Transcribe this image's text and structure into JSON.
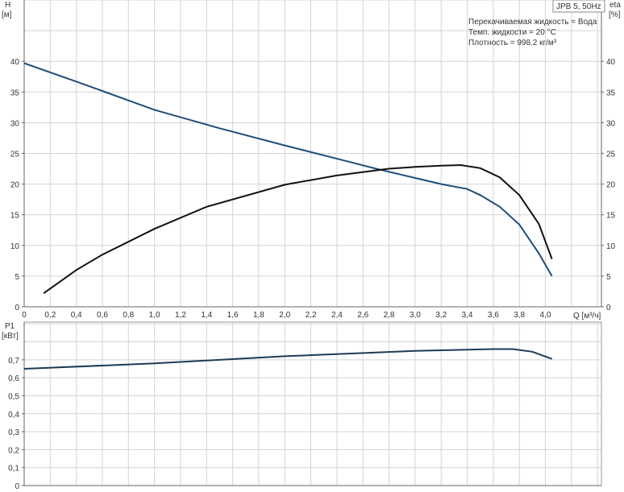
{
  "chart_data": [
    {
      "type": "line",
      "title_box": "JPB 5, 50Hz",
      "info": [
        "Перекачиваемая жидкость = Вода",
        "Темп. жидкости = 20 °C",
        "Плотность = 998.2 кг/м³"
      ],
      "xlabel": "Q [м³/ч]",
      "ylabel_left": [
        "H",
        "[м]"
      ],
      "ylabel_right": [
        "eta",
        "[%]"
      ],
      "xlim": [
        0,
        4.43
      ],
      "ylim": [
        0,
        50
      ],
      "x_ticks": [
        "0",
        "0,2",
        "0,4",
        "0,6",
        "0,8",
        "1,0",
        "1,2",
        "1,4",
        "1,6",
        "1,8",
        "2,0",
        "2,2",
        "2,4",
        "2,6",
        "2,8",
        "3,0",
        "3,2",
        "3,4",
        "3,6",
        "3,8",
        "4,0"
      ],
      "y_ticks": [
        "0",
        "5",
        "10",
        "15",
        "20",
        "25",
        "30",
        "35",
        "40"
      ],
      "grid": true,
      "series": [
        {
          "key": "H",
          "color": "#1f4e79",
          "x": [
            0,
            0.4,
            1.0,
            1.5,
            2.0,
            2.5,
            2.7,
            3.0,
            3.2,
            3.4,
            3.5,
            3.65,
            3.8,
            3.95,
            4.05
          ],
          "y": [
            39.7,
            36.7,
            32.1,
            29.1,
            26.3,
            23.6,
            22.5,
            21.0,
            20.0,
            19.2,
            18.2,
            16.3,
            13.4,
            8.7,
            5.0
          ]
        },
        {
          "key": "eta",
          "color": "#111111",
          "x": [
            0.15,
            0.4,
            0.6,
            1.0,
            1.4,
            2.0,
            2.4,
            2.8,
            3.0,
            3.2,
            3.35,
            3.5,
            3.65,
            3.8,
            3.95,
            4.05
          ],
          "y": [
            2.2,
            6.0,
            8.5,
            12.7,
            16.3,
            19.9,
            21.4,
            22.5,
            22.8,
            23.0,
            23.1,
            22.6,
            21.1,
            18.2,
            13.5,
            7.8
          ]
        }
      ]
    },
    {
      "type": "line",
      "ylabel": [
        "P1",
        "[кВт]"
      ],
      "xlim": [
        0,
        4.43
      ],
      "ylim": [
        0,
        0.91
      ],
      "y_ticks": [
        "0",
        "0,1",
        "0,2",
        "0,3",
        "0,4",
        "0,5",
        "0,6",
        "0,7"
      ],
      "grid": true,
      "series": [
        {
          "key": "P1",
          "color": "#1f3a55",
          "x": [
            0,
            1.0,
            2.0,
            3.0,
            3.6,
            3.75,
            3.9,
            4.05
          ],
          "y": [
            0.65,
            0.68,
            0.72,
            0.75,
            0.76,
            0.76,
            0.745,
            0.705
          ]
        }
      ]
    }
  ]
}
